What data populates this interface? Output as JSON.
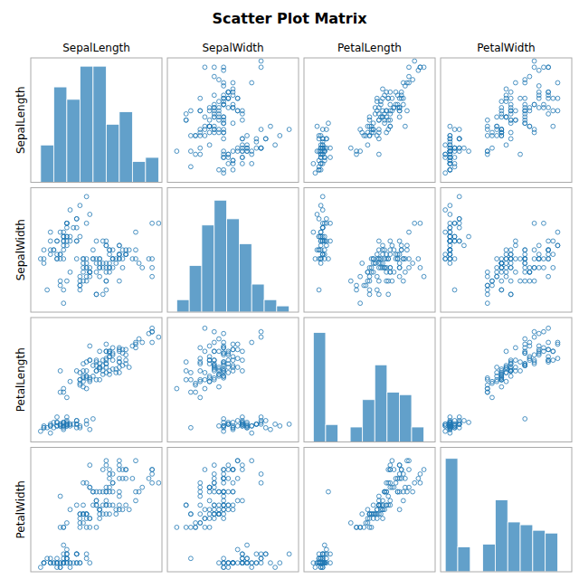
{
  "chart_data": {
    "type": "scatter_matrix",
    "title": "Scatter Plot Matrix",
    "tick_labels": false,
    "grid": false,
    "series": [
      {
        "name": "SepalLength",
        "xlim": [
          4,
          8
        ],
        "values": [
          5.1,
          4.9,
          4.7,
          4.6,
          5.0,
          5.4,
          4.6,
          5.0,
          4.4,
          4.9,
          5.4,
          4.8,
          4.8,
          4.3,
          5.8,
          5.7,
          5.4,
          5.1,
          5.7,
          5.1,
          5.4,
          5.1,
          4.6,
          5.1,
          4.8,
          5.0,
          5.0,
          5.2,
          5.2,
          4.7,
          4.8,
          5.4,
          5.2,
          5.5,
          4.9,
          5.0,
          5.5,
          4.9,
          4.4,
          5.1,
          5.0,
          4.5,
          4.4,
          5.0,
          5.1,
          4.8,
          5.1,
          4.6,
          5.3,
          5.0,
          7.0,
          6.4,
          6.9,
          5.5,
          6.5,
          5.7,
          6.3,
          4.9,
          6.6,
          5.2,
          5.0,
          5.9,
          6.0,
          6.1,
          5.6,
          6.7,
          5.6,
          5.8,
          6.2,
          5.6,
          5.9,
          6.1,
          6.3,
          6.1,
          6.4,
          6.6,
          6.8,
          6.7,
          6.0,
          5.7,
          5.5,
          5.5,
          5.8,
          6.0,
          5.4,
          6.0,
          6.7,
          6.3,
          5.6,
          5.5,
          5.5,
          6.1,
          5.8,
          5.0,
          5.6,
          5.7,
          5.7,
          6.2,
          5.1,
          5.7,
          6.3,
          5.8,
          7.1,
          6.3,
          6.5,
          7.6,
          4.9,
          7.3,
          6.7,
          7.2,
          6.5,
          6.4,
          6.8,
          5.7,
          5.8,
          6.4,
          6.5,
          7.7,
          7.7,
          6.0,
          6.9,
          5.6,
          7.7,
          6.3,
          6.7,
          7.2,
          6.2,
          6.1,
          6.4,
          7.2,
          7.4,
          7.9,
          6.4,
          6.3,
          6.1,
          7.7,
          6.3,
          6.4,
          6.0,
          6.9,
          6.7,
          6.9,
          5.8,
          6.8,
          6.7,
          6.7,
          6.3,
          6.5,
          6.2,
          5.9
        ],
        "histogram": {
          "bins": [
            4.3,
            4.7,
            5.1,
            5.5,
            5.9,
            6.3,
            6.7,
            7.1,
            7.5,
            7.9
          ],
          "counts": [
            9,
            23,
            20,
            28,
            28,
            14,
            17,
            5,
            6
          ],
          "ylim": [
            0,
            30
          ]
        }
      },
      {
        "name": "SepalWidth",
        "xlim": [
          1.8,
          4.6
        ],
        "values": [
          3.5,
          3.0,
          3.2,
          3.1,
          3.6,
          3.9,
          3.4,
          3.4,
          2.9,
          3.1,
          3.7,
          3.4,
          3.0,
          3.0,
          4.0,
          4.4,
          3.9,
          3.5,
          3.8,
          3.8,
          3.4,
          3.7,
          3.6,
          3.3,
          3.4,
          3.0,
          3.4,
          3.5,
          3.4,
          3.2,
          3.1,
          3.4,
          4.1,
          4.2,
          3.1,
          3.2,
          3.5,
          3.6,
          3.0,
          3.4,
          3.5,
          2.3,
          3.2,
          3.5,
          3.8,
          3.0,
          3.8,
          3.2,
          3.7,
          3.3,
          3.2,
          3.2,
          3.1,
          2.3,
          2.8,
          2.8,
          3.3,
          2.4,
          2.9,
          2.7,
          2.0,
          3.0,
          2.2,
          2.9,
          2.9,
          3.1,
          3.0,
          2.7,
          2.2,
          2.5,
          3.2,
          2.8,
          2.5,
          2.8,
          2.9,
          3.0,
          2.8,
          3.0,
          2.9,
          2.6,
          2.4,
          2.4,
          2.7,
          2.7,
          3.0,
          3.4,
          3.1,
          2.3,
          3.0,
          2.5,
          2.6,
          3.0,
          2.6,
          2.3,
          2.7,
          3.0,
          2.9,
          2.9,
          2.5,
          2.8,
          3.3,
          2.7,
          3.0,
          2.9,
          3.0,
          3.0,
          2.5,
          2.9,
          2.5,
          3.6,
          3.2,
          2.7,
          3.0,
          2.5,
          2.8,
          3.2,
          3.0,
          3.8,
          2.6,
          2.2,
          3.2,
          2.8,
          2.8,
          2.7,
          3.3,
          3.2,
          2.8,
          3.0,
          2.8,
          3.0,
          2.8,
          3.8,
          2.8,
          2.8,
          2.6,
          3.0,
          3.4,
          3.1,
          3.0,
          3.1,
          3.1,
          3.1,
          2.7,
          3.2,
          3.3,
          3.0,
          2.5,
          3.0,
          3.4,
          3.0
        ],
        "histogram": {
          "bins": [
            2.0,
            2.2666666666666666,
            2.533333333333333,
            2.8,
            3.0666666666666664,
            3.3333333333333335,
            3.6,
            3.8666666666666667,
            4.133333333333333,
            4.4
          ],
          "counts": [
            4,
            15,
            28,
            36,
            30,
            22,
            9,
            4,
            2
          ],
          "ylim": [
            0,
            40
          ]
        }
      },
      {
        "name": "PetalLength",
        "xlim": [
          0.5,
          7.5
        ],
        "values": [
          1.4,
          1.4,
          1.3,
          1.5,
          1.4,
          1.7,
          1.4,
          1.5,
          1.4,
          1.5,
          1.5,
          1.6,
          1.4,
          1.1,
          1.2,
          1.5,
          1.3,
          1.4,
          1.7,
          1.5,
          1.7,
          1.5,
          1.0,
          1.7,
          1.9,
          1.6,
          1.6,
          1.5,
          1.4,
          1.6,
          1.6,
          1.5,
          1.5,
          1.4,
          1.5,
          1.2,
          1.3,
          1.4,
          1.3,
          1.5,
          1.3,
          1.3,
          1.3,
          1.6,
          1.9,
          1.4,
          1.6,
          1.4,
          1.5,
          1.4,
          4.7,
          4.5,
          4.9,
          4.0,
          4.6,
          4.5,
          4.7,
          3.3,
          4.6,
          3.9,
          3.5,
          4.2,
          4.0,
          4.7,
          3.6,
          4.4,
          4.5,
          4.1,
          4.5,
          3.9,
          4.8,
          4.0,
          4.9,
          4.7,
          4.3,
          4.4,
          4.8,
          5.0,
          4.5,
          3.5,
          3.8,
          3.7,
          3.9,
          5.1,
          4.5,
          4.5,
          4.7,
          4.4,
          4.1,
          4.0,
          4.4,
          4.6,
          4.0,
          3.3,
          4.2,
          4.2,
          4.2,
          4.3,
          3.0,
          4.1,
          6.0,
          5.1,
          5.9,
          5.6,
          5.8,
          6.6,
          4.5,
          6.3,
          5.8,
          6.1,
          5.1,
          5.3,
          5.5,
          5.0,
          5.1,
          5.3,
          5.5,
          6.7,
          6.9,
          5.0,
          5.7,
          4.9,
          6.7,
          4.9,
          5.7,
          6.0,
          4.8,
          4.9,
          5.6,
          5.8,
          6.1,
          6.4,
          5.6,
          5.1,
          5.6,
          6.1,
          5.6,
          5.5,
          4.8,
          5.4,
          5.6,
          5.1,
          5.9,
          5.7,
          5.2,
          5.0,
          5.2,
          5.4,
          5.1,
          1.8
        ],
        "histogram": {
          "bins": [
            1.0,
            1.6555555555555557,
            2.311111111111111,
            2.966666666666667,
            3.6222222222222222,
            4.277777777777778,
            4.933333333333334,
            5.588888888888889,
            6.2444444444444445,
            6.9
          ],
          "counts": [
            44,
            7,
            0,
            6,
            17,
            31,
            20,
            19,
            6
          ],
          "ylim": [
            0,
            50
          ]
        }
      },
      {
        "name": "PetalWidth",
        "xlim": [
          0,
          2.8
        ],
        "values": [
          0.2,
          0.2,
          0.2,
          0.2,
          0.2,
          0.4,
          0.3,
          0.2,
          0.2,
          0.1,
          0.2,
          0.2,
          0.1,
          0.1,
          0.2,
          0.4,
          0.4,
          0.3,
          0.3,
          0.3,
          0.2,
          0.4,
          0.2,
          0.5,
          0.2,
          0.2,
          0.4,
          0.2,
          0.2,
          0.2,
          0.2,
          0.4,
          0.1,
          0.2,
          0.2,
          0.2,
          0.2,
          0.1,
          0.2,
          0.3,
          0.3,
          0.3,
          0.2,
          0.6,
          0.4,
          0.3,
          0.2,
          0.2,
          0.2,
          0.2,
          1.4,
          1.5,
          1.5,
          1.3,
          1.5,
          1.3,
          1.6,
          1.0,
          1.3,
          1.4,
          1.0,
          1.5,
          1.0,
          1.4,
          1.3,
          1.4,
          1.5,
          1.0,
          1.5,
          1.1,
          1.8,
          1.3,
          1.5,
          1.2,
          1.3,
          1.4,
          1.4,
          1.7,
          1.5,
          1.0,
          1.1,
          1.0,
          1.2,
          1.6,
          1.5,
          1.6,
          1.5,
          1.3,
          1.3,
          1.3,
          1.2,
          1.4,
          1.2,
          1.0,
          1.3,
          1.2,
          1.3,
          1.3,
          1.1,
          1.3,
          2.5,
          1.9,
          2.1,
          1.8,
          2.2,
          2.1,
          1.7,
          1.8,
          1.8,
          2.5,
          2.0,
          1.9,
          2.1,
          2.0,
          2.4,
          2.3,
          1.8,
          2.2,
          2.3,
          1.5,
          2.3,
          2.0,
          2.0,
          1.8,
          2.1,
          1.8,
          1.8,
          1.8,
          2.1,
          1.6,
          1.9,
          2.0,
          2.2,
          1.5,
          1.4,
          2.3,
          2.4,
          1.8,
          1.8,
          2.1,
          2.4,
          2.3,
          1.9,
          2.3,
          2.5,
          2.3,
          1.9,
          2.0,
          2.3,
          1.8
        ],
        "histogram": {
          "bins": [
            0.1,
            0.3666666666666667,
            0.6333333333333333,
            0.9,
            1.1666666666666667,
            1.4333333333333333,
            1.7,
            1.9666666666666666,
            2.2333333333333334,
            2.5
          ],
          "counts": [
            41,
            9,
            0,
            10,
            26,
            18,
            17,
            15,
            14
          ],
          "ylim": [
            0,
            45
          ]
        }
      }
    ]
  }
}
